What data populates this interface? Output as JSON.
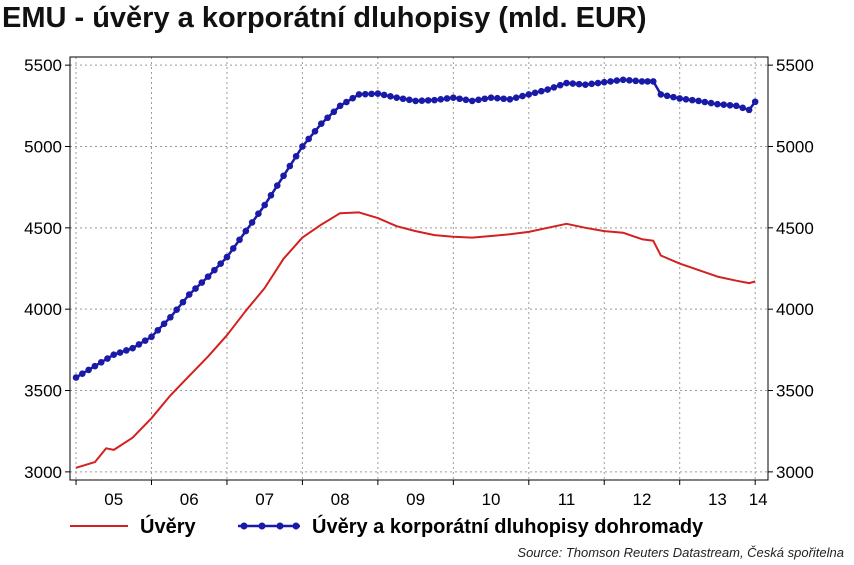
{
  "chart_data": {
    "type": "line",
    "title": "EMU - úvěry a korporátní dluhopisy (mld. EUR)",
    "source": "Source: Thomson Reuters Datastream, Česká spořitelna",
    "x_labels": [
      "05",
      "06",
      "07",
      "08",
      "09",
      "10",
      "11",
      "12",
      "13",
      "14"
    ],
    "y_ticks": [
      3000,
      3500,
      4000,
      4500,
      5000,
      5500
    ],
    "ylim": [
      2950,
      5550
    ],
    "xlim": [
      2004.92,
      2014.17
    ],
    "grid": true,
    "legend_position": "bottom",
    "colors": {
      "series1": "#d42020",
      "series2": "#1a1aa8"
    },
    "series": [
      {
        "name": "Úvěry",
        "style": "line",
        "points": [
          [
            2005.0,
            3025
          ],
          [
            2005.25,
            3060
          ],
          [
            2005.4,
            3145
          ],
          [
            2005.5,
            3135
          ],
          [
            2005.75,
            3210
          ],
          [
            2006.0,
            3330
          ],
          [
            2006.25,
            3470
          ],
          [
            2006.5,
            3590
          ],
          [
            2006.75,
            3710
          ],
          [
            2007.0,
            3840
          ],
          [
            2007.25,
            3990
          ],
          [
            2007.5,
            4130
          ],
          [
            2007.75,
            4310
          ],
          [
            2008.0,
            4440
          ],
          [
            2008.25,
            4520
          ],
          [
            2008.5,
            4590
          ],
          [
            2008.75,
            4595
          ],
          [
            2009.0,
            4560
          ],
          [
            2009.25,
            4510
          ],
          [
            2009.5,
            4480
          ],
          [
            2009.75,
            4455
          ],
          [
            2010.0,
            4445
          ],
          [
            2010.25,
            4440
          ],
          [
            2010.5,
            4450
          ],
          [
            2010.75,
            4460
          ],
          [
            2011.0,
            4475
          ],
          [
            2011.25,
            4500
          ],
          [
            2011.5,
            4525
          ],
          [
            2011.75,
            4500
          ],
          [
            2012.0,
            4480
          ],
          [
            2012.25,
            4470
          ],
          [
            2012.5,
            4430
          ],
          [
            2012.65,
            4420
          ],
          [
            2012.75,
            4330
          ],
          [
            2013.0,
            4280
          ],
          [
            2013.25,
            4240
          ],
          [
            2013.5,
            4200
          ],
          [
            2013.75,
            4175
          ],
          [
            2013.92,
            4160
          ],
          [
            2014.0,
            4170
          ]
        ]
      },
      {
        "name": "Úvěry a korporátní dluhopisy dohromady",
        "style": "line-markers",
        "points": [
          [
            2005.0,
            3580
          ],
          [
            2005.25,
            3650
          ],
          [
            2005.5,
            3720
          ],
          [
            2005.75,
            3760
          ],
          [
            2006.0,
            3830
          ],
          [
            2006.25,
            3950
          ],
          [
            2006.5,
            4090
          ],
          [
            2006.75,
            4200
          ],
          [
            2007.0,
            4320
          ],
          [
            2007.25,
            4480
          ],
          [
            2007.5,
            4640
          ],
          [
            2007.75,
            4820
          ],
          [
            2008.0,
            5000
          ],
          [
            2008.25,
            5140
          ],
          [
            2008.5,
            5250
          ],
          [
            2008.75,
            5320
          ],
          [
            2009.0,
            5325
          ],
          [
            2009.25,
            5300
          ],
          [
            2009.5,
            5280
          ],
          [
            2009.75,
            5285
          ],
          [
            2010.0,
            5300
          ],
          [
            2010.25,
            5280
          ],
          [
            2010.5,
            5300
          ],
          [
            2010.75,
            5290
          ],
          [
            2011.0,
            5320
          ],
          [
            2011.25,
            5350
          ],
          [
            2011.5,
            5390
          ],
          [
            2011.75,
            5380
          ],
          [
            2012.0,
            5395
          ],
          [
            2012.25,
            5410
          ],
          [
            2012.5,
            5400
          ],
          [
            2012.65,
            5400
          ],
          [
            2012.75,
            5320
          ],
          [
            2013.0,
            5295
          ],
          [
            2013.25,
            5280
          ],
          [
            2013.5,
            5260
          ],
          [
            2013.75,
            5250
          ],
          [
            2013.92,
            5225
          ],
          [
            2014.0,
            5275
          ]
        ]
      }
    ]
  }
}
